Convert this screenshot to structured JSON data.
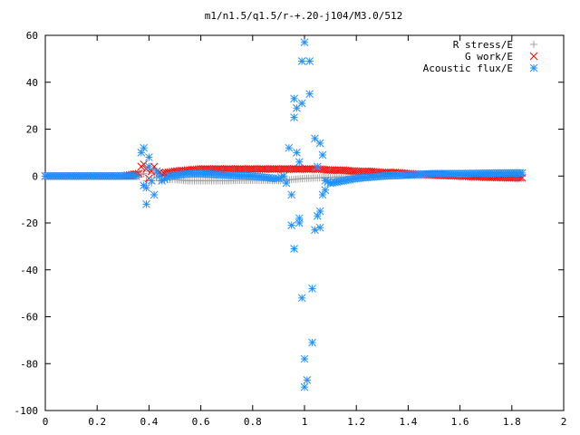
{
  "chart_data": {
    "type": "scatter",
    "title": "m1/n1.5/q1.5/r-+.20-j104/M3.0/512",
    "xlabel": "",
    "ylabel": "",
    "xlim": [
      0,
      2
    ],
    "ylim": [
      -100,
      60
    ],
    "xticks": [
      "0",
      "0.2",
      "0.4",
      "0.6",
      "0.8",
      "1",
      "1.2",
      "1.4",
      "1.6",
      "1.8",
      "2"
    ],
    "yticks": [
      "60",
      "40",
      "20",
      "0",
      "-20",
      "-40",
      "-60",
      "-80",
      "-100"
    ],
    "legend_position": "top-right",
    "grid": false,
    "series": [
      {
        "name": "R stress/E",
        "marker": "plus",
        "color": "#a0a0a0",
        "points": [
          [
            0.0,
            0
          ],
          [
            0.05,
            0
          ],
          [
            0.1,
            0
          ],
          [
            0.15,
            0
          ],
          [
            0.2,
            0
          ],
          [
            0.25,
            0
          ],
          [
            0.3,
            0
          ],
          [
            0.35,
            0
          ],
          [
            0.38,
            1
          ],
          [
            0.39,
            -2
          ],
          [
            0.4,
            2
          ],
          [
            0.41,
            -3
          ],
          [
            0.42,
            1
          ],
          [
            0.44,
            -2
          ],
          [
            0.46,
            -1.5
          ],
          [
            0.5,
            -1.5
          ],
          [
            0.55,
            -2
          ],
          [
            0.6,
            -2
          ],
          [
            0.65,
            -2
          ],
          [
            0.7,
            -2
          ],
          [
            0.75,
            -1.8
          ],
          [
            0.8,
            -1.8
          ],
          [
            0.85,
            -1.8
          ],
          [
            0.9,
            -2
          ],
          [
            0.95,
            -1.5
          ],
          [
            1.0,
            -1
          ],
          [
            1.05,
            -0.8
          ],
          [
            1.1,
            -0.5
          ],
          [
            1.15,
            -0.3
          ],
          [
            1.2,
            -0.2
          ],
          [
            1.3,
            0
          ],
          [
            1.4,
            0.2
          ],
          [
            1.5,
            0.2
          ],
          [
            1.6,
            0.3
          ],
          [
            1.7,
            0.4
          ],
          [
            1.8,
            0.4
          ],
          [
            1.84,
            0.4
          ]
        ]
      },
      {
        "name": "G work/E",
        "marker": "cross",
        "color": "#ff0000",
        "points": [
          [
            0.0,
            0
          ],
          [
            0.1,
            0
          ],
          [
            0.2,
            0
          ],
          [
            0.3,
            0
          ],
          [
            0.36,
            1
          ],
          [
            0.37,
            4
          ],
          [
            0.38,
            5
          ],
          [
            0.39,
            3
          ],
          [
            0.4,
            -1
          ],
          [
            0.41,
            2
          ],
          [
            0.42,
            4
          ],
          [
            0.43,
            2
          ],
          [
            0.45,
            1
          ],
          [
            0.5,
            2
          ],
          [
            0.55,
            2.5
          ],
          [
            0.6,
            3
          ],
          [
            0.65,
            3
          ],
          [
            0.7,
            3
          ],
          [
            0.75,
            3
          ],
          [
            0.8,
            3
          ],
          [
            0.85,
            3
          ],
          [
            0.9,
            3
          ],
          [
            0.95,
            3
          ],
          [
            1.0,
            3
          ],
          [
            1.05,
            3
          ],
          [
            1.1,
            2.5
          ],
          [
            1.15,
            2.5
          ],
          [
            1.2,
            2
          ],
          [
            1.25,
            2
          ],
          [
            1.3,
            1.5
          ],
          [
            1.35,
            1.5
          ],
          [
            1.4,
            1
          ],
          [
            1.5,
            0.5
          ],
          [
            1.6,
            0
          ],
          [
            1.7,
            -0.5
          ],
          [
            1.8,
            -0.8
          ],
          [
            1.84,
            -0.8
          ]
        ]
      },
      {
        "name": "Acoustic flux/E",
        "marker": "star",
        "color": "#1e90ff",
        "points": [
          [
            0.0,
            0
          ],
          [
            0.05,
            0
          ],
          [
            0.1,
            0
          ],
          [
            0.15,
            0
          ],
          [
            0.2,
            0
          ],
          [
            0.25,
            0
          ],
          [
            0.3,
            0
          ],
          [
            0.35,
            0
          ],
          [
            0.37,
            10
          ],
          [
            0.38,
            12
          ],
          [
            0.38,
            -4
          ],
          [
            0.39,
            -12
          ],
          [
            0.39,
            -5
          ],
          [
            0.4,
            8
          ],
          [
            0.4,
            4
          ],
          [
            0.41,
            -2
          ],
          [
            0.42,
            -8
          ],
          [
            0.43,
            2
          ],
          [
            0.45,
            -2
          ],
          [
            0.48,
            0
          ],
          [
            0.55,
            1
          ],
          [
            0.6,
            1
          ],
          [
            0.7,
            0.5
          ],
          [
            0.8,
            0
          ],
          [
            0.88,
            -1
          ],
          [
            0.9,
            -1
          ],
          [
            0.92,
            0
          ],
          [
            0.93,
            -3
          ],
          [
            0.94,
            12
          ],
          [
            0.95,
            -8
          ],
          [
            0.95,
            -21
          ],
          [
            0.96,
            25
          ],
          [
            0.96,
            33
          ],
          [
            0.96,
            -31
          ],
          [
            0.97,
            29
          ],
          [
            0.97,
            10
          ],
          [
            0.98,
            6
          ],
          [
            0.98,
            -18
          ],
          [
            0.98,
            -20
          ],
          [
            0.99,
            31
          ],
          [
            0.99,
            49
          ],
          [
            0.99,
            -52
          ],
          [
            1.0,
            57
          ],
          [
            1.0,
            -78
          ],
          [
            1.0,
            -90
          ],
          [
            1.01,
            -87
          ],
          [
            1.02,
            49
          ],
          [
            1.02,
            35
          ],
          [
            1.03,
            -71
          ],
          [
            1.03,
            -48
          ],
          [
            1.04,
            16
          ],
          [
            1.04,
            -23
          ],
          [
            1.05,
            -17
          ],
          [
            1.05,
            4
          ],
          [
            1.06,
            14
          ],
          [
            1.06,
            -22
          ],
          [
            1.06,
            -15
          ],
          [
            1.07,
            -8
          ],
          [
            1.07,
            9
          ],
          [
            1.08,
            -6
          ],
          [
            1.08,
            -2
          ],
          [
            1.1,
            -3
          ],
          [
            1.15,
            -2
          ],
          [
            1.2,
            -1
          ],
          [
            1.3,
            0
          ],
          [
            1.4,
            0.5
          ],
          [
            1.5,
            1
          ],
          [
            1.6,
            1
          ],
          [
            1.7,
            1.2
          ],
          [
            1.8,
            1.3
          ],
          [
            1.84,
            1.3
          ]
        ]
      }
    ]
  }
}
